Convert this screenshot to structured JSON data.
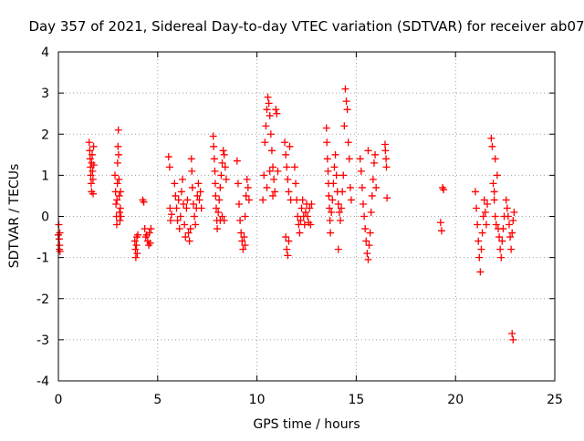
{
  "chart_data": {
    "type": "scatter",
    "title": "Day 357 of 2021, Sidereal Day-to-day VTEC variation (SDTVAR) for receiver ab07",
    "xlabel": "GPS time / hours",
    "ylabel": "SDTVAR / TECUs",
    "xlim": [
      0,
      25
    ],
    "ylim": [
      -4,
      4
    ],
    "x_ticks": [
      0,
      5,
      10,
      15,
      20,
      25
    ],
    "y_ticks": [
      -4,
      -3,
      -2,
      -1,
      0,
      1,
      2,
      3,
      4
    ],
    "grid": true,
    "marker": "+",
    "marker_color": "#ff0000",
    "series": [
      {
        "name": "SDTVAR",
        "points": [
          [
            0.0,
            -0.45
          ],
          [
            0.02,
            -0.2
          ],
          [
            0.04,
            -0.55
          ],
          [
            0.05,
            -0.8
          ],
          [
            0.06,
            -0.7
          ],
          [
            0.07,
            -0.4
          ],
          [
            0.08,
            -0.85
          ],
          [
            1.55,
            1.8
          ],
          [
            1.58,
            1.6
          ],
          [
            1.6,
            1.4
          ],
          [
            1.62,
            1.2
          ],
          [
            1.63,
            1.0
          ],
          [
            1.65,
            0.8
          ],
          [
            1.67,
            0.6
          ],
          [
            1.68,
            1.3
          ],
          [
            1.7,
            1.5
          ],
          [
            1.72,
            1.1
          ],
          [
            1.74,
            0.9
          ],
          [
            1.75,
            0.55
          ],
          [
            1.77,
            1.7
          ],
          [
            1.78,
            1.25
          ],
          [
            2.85,
            1.0
          ],
          [
            2.88,
            0.6
          ],
          [
            2.9,
            0.3
          ],
          [
            2.92,
            0.0
          ],
          [
            2.94,
            -0.2
          ],
          [
            2.95,
            0.4
          ],
          [
            2.97,
            0.8
          ],
          [
            2.98,
            1.3
          ],
          [
            3.0,
            1.7
          ],
          [
            3.02,
            2.1
          ],
          [
            3.03,
            1.5
          ],
          [
            3.05,
            0.9
          ],
          [
            3.06,
            0.5
          ],
          [
            3.08,
            0.1
          ],
          [
            3.1,
            -0.1
          ],
          [
            3.12,
            0.2
          ],
          [
            3.13,
            0.6
          ],
          [
            3.15,
            0.0
          ],
          [
            3.85,
            -0.6
          ],
          [
            3.88,
            -0.8
          ],
          [
            3.9,
            -1.0
          ],
          [
            3.93,
            -0.7
          ],
          [
            3.95,
            -0.5
          ],
          [
            3.97,
            -0.9
          ],
          [
            4.0,
            -0.45
          ],
          [
            4.25,
            0.4
          ],
          [
            4.3,
            0.35
          ],
          [
            4.35,
            -0.3
          ],
          [
            4.4,
            -0.5
          ],
          [
            4.45,
            -0.45
          ],
          [
            4.5,
            -0.6
          ],
          [
            4.55,
            -0.7
          ],
          [
            4.58,
            -0.4
          ],
          [
            4.62,
            -0.65
          ],
          [
            4.66,
            -0.3
          ],
          [
            5.55,
            1.45
          ],
          [
            5.6,
            1.2
          ],
          [
            5.62,
            0.2
          ],
          [
            5.65,
            -0.1
          ],
          [
            5.7,
            0.05
          ],
          [
            5.85,
            0.8
          ],
          [
            5.9,
            0.5
          ],
          [
            5.95,
            0.2
          ],
          [
            6.0,
            -0.1
          ],
          [
            6.05,
            0.4
          ],
          [
            6.1,
            -0.3
          ],
          [
            6.15,
            0.0
          ],
          [
            6.2,
            0.6
          ],
          [
            6.25,
            0.9
          ],
          [
            6.3,
            0.3
          ],
          [
            6.35,
            -0.2
          ],
          [
            6.4,
            -0.5
          ],
          [
            6.45,
            0.2
          ],
          [
            6.5,
            0.4
          ],
          [
            6.55,
            -0.4
          ],
          [
            6.6,
            -0.6
          ],
          [
            6.65,
            -0.3
          ],
          [
            6.7,
            1.4
          ],
          [
            6.72,
            1.1
          ],
          [
            6.75,
            0.7
          ],
          [
            6.8,
            0.3
          ],
          [
            6.85,
            0.0
          ],
          [
            6.9,
            -0.2
          ],
          [
            6.95,
            0.2
          ],
          [
            7.0,
            0.5
          ],
          [
            7.05,
            0.8
          ],
          [
            7.1,
            0.4
          ],
          [
            7.15,
            0.6
          ],
          [
            7.2,
            0.2
          ],
          [
            7.8,
            1.95
          ],
          [
            7.82,
            1.7
          ],
          [
            7.85,
            1.4
          ],
          [
            7.88,
            1.1
          ],
          [
            7.9,
            0.8
          ],
          [
            7.92,
            0.5
          ],
          [
            7.95,
            0.2
          ],
          [
            7.98,
            -0.1
          ],
          [
            8.0,
            -0.3
          ],
          [
            8.05,
            0.1
          ],
          [
            8.1,
            0.4
          ],
          [
            8.15,
            0.7
          ],
          [
            8.2,
            1.0
          ],
          [
            8.25,
            1.3
          ],
          [
            8.3,
            1.6
          ],
          [
            8.35,
            1.5
          ],
          [
            8.4,
            1.2
          ],
          [
            8.45,
            0.9
          ],
          [
            8.15,
            -0.1
          ],
          [
            8.25,
            0.0
          ],
          [
            8.35,
            -0.1
          ],
          [
            9.0,
            1.35
          ],
          [
            9.05,
            0.8
          ],
          [
            9.1,
            0.3
          ],
          [
            9.15,
            -0.1
          ],
          [
            9.2,
            -0.4
          ],
          [
            9.25,
            -0.6
          ],
          [
            9.3,
            -0.8
          ],
          [
            9.35,
            -0.5
          ],
          [
            9.4,
            0.0
          ],
          [
            9.45,
            0.5
          ],
          [
            9.5,
            0.9
          ],
          [
            9.55,
            0.7
          ],
          [
            9.6,
            0.4
          ],
          [
            9.4,
            -0.7
          ],
          [
            10.3,
            0.4
          ],
          [
            10.35,
            1.0
          ],
          [
            10.4,
            1.8
          ],
          [
            10.45,
            2.2
          ],
          [
            10.5,
            2.6
          ],
          [
            10.55,
            2.9
          ],
          [
            10.6,
            2.75
          ],
          [
            10.65,
            2.45
          ],
          [
            10.7,
            2.0
          ],
          [
            10.75,
            1.6
          ],
          [
            10.8,
            1.2
          ],
          [
            10.85,
            0.9
          ],
          [
            10.9,
            0.6
          ],
          [
            10.95,
            2.6
          ],
          [
            11.0,
            2.5
          ],
          [
            11.05,
            1.1
          ],
          [
            10.5,
            0.7
          ],
          [
            10.65,
            1.1
          ],
          [
            10.8,
            0.5
          ],
          [
            11.4,
            1.8
          ],
          [
            11.45,
            1.5
          ],
          [
            11.5,
            1.2
          ],
          [
            11.55,
            0.9
          ],
          [
            11.6,
            0.6
          ],
          [
            11.45,
            -0.5
          ],
          [
            11.5,
            -0.8
          ],
          [
            11.55,
            -0.95
          ],
          [
            11.6,
            -0.6
          ],
          [
            11.65,
            1.7
          ],
          [
            11.7,
            0.4
          ],
          [
            11.9,
            1.2
          ],
          [
            11.95,
            0.8
          ],
          [
            12.0,
            0.4
          ],
          [
            12.05,
            0.0
          ],
          [
            12.1,
            -0.2
          ],
          [
            12.15,
            -0.4
          ],
          [
            12.2,
            -0.1
          ],
          [
            12.25,
            0.2
          ],
          [
            12.3,
            0.4
          ],
          [
            12.35,
            0.0
          ],
          [
            12.4,
            -0.2
          ],
          [
            12.45,
            0.1
          ],
          [
            12.5,
            0.3
          ],
          [
            12.55,
            0.0
          ],
          [
            12.6,
            -0.15
          ],
          [
            12.65,
            0.2
          ],
          [
            12.7,
            -0.2
          ],
          [
            12.75,
            0.3
          ],
          [
            13.5,
            2.15
          ],
          [
            13.52,
            1.8
          ],
          [
            13.55,
            1.4
          ],
          [
            13.58,
            1.1
          ],
          [
            13.6,
            0.8
          ],
          [
            13.62,
            0.5
          ],
          [
            13.65,
            0.2
          ],
          [
            13.68,
            -0.1
          ],
          [
            13.7,
            -0.4
          ],
          [
            13.75,
            0.1
          ],
          [
            13.8,
            0.4
          ],
          [
            13.85,
            0.8
          ],
          [
            13.9,
            1.2
          ],
          [
            13.95,
            1.5
          ],
          [
            14.0,
            1.0
          ],
          [
            14.05,
            0.6
          ],
          [
            14.1,
            0.3
          ],
          [
            14.15,
            0.1
          ],
          [
            14.2,
            -0.1
          ],
          [
            14.25,
            0.2
          ],
          [
            14.3,
            0.6
          ],
          [
            14.35,
            1.0
          ],
          [
            14.4,
            2.2
          ],
          [
            14.45,
            3.1
          ],
          [
            14.5,
            2.8
          ],
          [
            14.55,
            2.6
          ],
          [
            14.6,
            1.8
          ],
          [
            14.65,
            1.4
          ],
          [
            14.7,
            0.7
          ],
          [
            14.75,
            0.4
          ],
          [
            14.1,
            -0.8
          ],
          [
            15.2,
            1.4
          ],
          [
            15.25,
            1.1
          ],
          [
            15.3,
            0.7
          ],
          [
            15.35,
            0.3
          ],
          [
            15.4,
            0.0
          ],
          [
            15.45,
            -0.3
          ],
          [
            15.5,
            -0.6
          ],
          [
            15.55,
            -0.9
          ],
          [
            15.6,
            -1.05
          ],
          [
            15.65,
            -0.7
          ],
          [
            15.7,
            -0.4
          ],
          [
            15.75,
            0.1
          ],
          [
            15.8,
            0.5
          ],
          [
            15.85,
            0.9
          ],
          [
            15.9,
            1.3
          ],
          [
            15.95,
            1.5
          ],
          [
            16.0,
            0.7
          ],
          [
            15.6,
            1.6
          ],
          [
            16.45,
            1.75
          ],
          [
            16.47,
            1.6
          ],
          [
            16.5,
            1.4
          ],
          [
            16.52,
            1.2
          ],
          [
            16.55,
            0.45
          ],
          [
            19.25,
            -0.15
          ],
          [
            19.3,
            -0.35
          ],
          [
            19.35,
            0.7
          ],
          [
            19.4,
            0.65
          ],
          [
            21.0,
            0.6
          ],
          [
            21.05,
            0.2
          ],
          [
            21.1,
            -0.2
          ],
          [
            21.15,
            -0.6
          ],
          [
            21.2,
            -1.0
          ],
          [
            21.25,
            -1.35
          ],
          [
            21.3,
            -0.8
          ],
          [
            21.35,
            -0.4
          ],
          [
            21.4,
            0.0
          ],
          [
            21.45,
            0.4
          ],
          [
            21.5,
            0.1
          ],
          [
            21.55,
            -0.2
          ],
          [
            21.6,
            0.3
          ],
          [
            21.8,
            1.9
          ],
          [
            21.85,
            1.7
          ],
          [
            21.9,
            0.8
          ],
          [
            21.95,
            0.4
          ],
          [
            22.0,
            0.0
          ],
          [
            22.05,
            -0.2
          ],
          [
            22.1,
            1.0
          ],
          [
            22.0,
            1.4
          ],
          [
            21.95,
            0.6
          ],
          [
            22.15,
            -0.3
          ],
          [
            22.2,
            -0.5
          ],
          [
            22.25,
            -0.8
          ],
          [
            22.3,
            -1.0
          ],
          [
            22.35,
            -0.6
          ],
          [
            22.4,
            -0.3
          ],
          [
            22.45,
            0.0
          ],
          [
            22.55,
            0.4
          ],
          [
            22.6,
            0.2
          ],
          [
            22.65,
            0.0
          ],
          [
            22.7,
            -0.2
          ],
          [
            22.75,
            -0.5
          ],
          [
            22.8,
            -0.8
          ],
          [
            22.85,
            -0.4
          ],
          [
            22.9,
            -0.1
          ],
          [
            22.95,
            0.1
          ],
          [
            22.85,
            -2.85
          ],
          [
            22.9,
            -3.0
          ]
        ]
      }
    ]
  }
}
